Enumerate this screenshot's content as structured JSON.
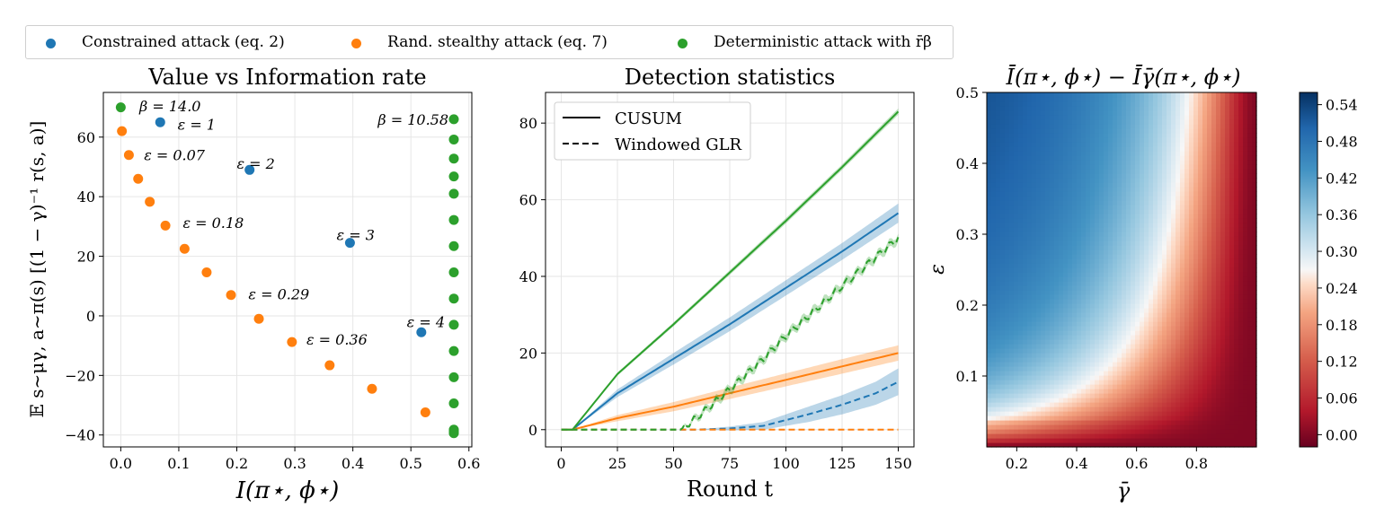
{
  "colors": {
    "blue": "#1f77b4",
    "orange": "#ff7f0e",
    "green": "#2ca02c"
  },
  "legend": [
    {
      "label": "Constrained attack (eq. 2)",
      "color": "#1f77b4"
    },
    {
      "label": "Rand. stealthy attack (eq. 7)",
      "color": "#ff7f0e"
    },
    {
      "label": "Deterministic attack with r̄β",
      "color": "#2ca02c"
    }
  ],
  "chart_data": [
    {
      "type": "scatter",
      "title": "Value vs Information rate",
      "xlabel": "I(π⋆, ϕ⋆)",
      "ylabel": "𝔼 s∼μγ, a∼π(s) [(1 − γ)⁻¹ r(s, a)]",
      "xlim": [
        -0.03,
        0.605
      ],
      "ylim": [
        -44,
        75
      ],
      "xticks": [
        "0.0",
        "0.1",
        "0.2",
        "0.3",
        "0.4",
        "0.5",
        "0.6"
      ],
      "xtick_values": [
        0,
        0.1,
        0.2,
        0.3,
        0.4,
        0.5,
        0.6
      ],
      "yticks": [
        "−40",
        "−20",
        "0",
        "20",
        "40",
        "60"
      ],
      "ytick_values": [
        -40,
        -20,
        0,
        20,
        40,
        60
      ],
      "grid": true,
      "series": [
        {
          "name": "Constrained attack (eq. 2)",
          "color": "#1f77b4",
          "x": [
            0.068,
            0.222,
            0.395,
            0.518
          ],
          "y": [
            65,
            49,
            24.5,
            -5.5
          ]
        },
        {
          "name": "Rand. stealthy attack (eq. 7)",
          "color": "#ff7f0e",
          "x": [
            0.002,
            0.014,
            0.03,
            0.05,
            0.077,
            0.11,
            0.148,
            0.19,
            0.238,
            0.295,
            0.36,
            0.433,
            0.525
          ],
          "y": [
            62,
            54,
            46,
            38.3,
            30.3,
            22.5,
            14.6,
            7,
            -1,
            -8.8,
            -16.6,
            -24.5,
            -32.4
          ]
        },
        {
          "name": "Deterministic attack with r̄β",
          "color": "#2ca02c",
          "x": [
            0.0,
            0.574,
            0.574,
            0.574,
            0.574,
            0.574,
            0.574,
            0.574,
            0.574,
            0.574,
            0.574,
            0.574,
            0.574,
            0.574,
            0.574,
            0.574,
            0.574,
            0.574,
            0.574,
            0.574,
            0.574
          ],
          "y": [
            70,
            66,
            59.2,
            52.8,
            46.8,
            41,
            32.2,
            23.4,
            14.6,
            5.8,
            -3,
            -11.8,
            -20.6,
            -29.4,
            -38.2,
            -38.4,
            -38.6,
            -38.8,
            -39,
            -39.2,
            -39.4
          ]
        }
      ],
      "annotations": [
        {
          "text": "β = 14.0",
          "x": 0.032,
          "y": 70.5
        },
        {
          "text": "ε = 1",
          "x": 0.098,
          "y": 64.3
        },
        {
          "text": "ε = 0.07",
          "x": 0.04,
          "y": 54
        },
        {
          "text": "ε = 2",
          "x": 0.2,
          "y": 51.2
        },
        {
          "text": "ε = 0.18",
          "x": 0.107,
          "y": 31.3
        },
        {
          "text": "ε = 3",
          "x": 0.372,
          "y": 27.3
        },
        {
          "text": "ε = 0.29",
          "x": 0.22,
          "y": 7.3
        },
        {
          "text": "ε = 0.36",
          "x": 0.32,
          "y": -7.8
        },
        {
          "text": "ε = 4",
          "x": 0.493,
          "y": -1.9
        },
        {
          "text": "β = 10.58",
          "x": 0.443,
          "y": 66
        }
      ]
    },
    {
      "type": "line",
      "title": "Detection statistics",
      "xlabel": "Round t",
      "ylabel": "",
      "xlim": [
        -7,
        157
      ],
      "ylim": [
        -4.5,
        88
      ],
      "xticks": [
        "0",
        "25",
        "50",
        "75",
        "100",
        "125",
        "150"
      ],
      "xtick_values": [
        0,
        25,
        50,
        75,
        100,
        125,
        150
      ],
      "yticks": [
        "0",
        "20",
        "40",
        "60",
        "80"
      ],
      "ytick_values": [
        0,
        20,
        40,
        60,
        80
      ],
      "grid": true,
      "legend": [
        {
          "label": "CUSUM",
          "style": "solid"
        },
        {
          "label": "Windowed GLR",
          "style": "dashed"
        }
      ],
      "series": [
        {
          "name": "Constrained CUSUM",
          "color": "#1f77b4",
          "style": "solid",
          "x": [
            0,
            5,
            25,
            50,
            75,
            100,
            125,
            150
          ],
          "y": [
            0,
            0,
            9.5,
            18.5,
            27.5,
            37,
            46.5,
            56.5
          ],
          "band": [
            0,
            0,
            1,
            1.5,
            1.8,
            2,
            2.2,
            2.5
          ]
        },
        {
          "name": "Rand. stealthy CUSUM",
          "color": "#ff7f0e",
          "style": "solid",
          "x": [
            0,
            5,
            25,
            50,
            75,
            100,
            125,
            150
          ],
          "y": [
            0,
            0,
            3,
            6,
            9.5,
            13,
            16.5,
            20
          ],
          "band": [
            0,
            0,
            0.8,
            1.2,
            1.5,
            1.7,
            1.9,
            2
          ]
        },
        {
          "name": "Deterministic CUSUM",
          "color": "#2ca02c",
          "style": "solid",
          "x": [
            0,
            5,
            25,
            50,
            75,
            100,
            125,
            150
          ],
          "y": [
            0,
            0,
            14.5,
            27.5,
            41,
            54.5,
            68.5,
            83
          ],
          "band": [
            0,
            0,
            0.4,
            0.5,
            0.6,
            0.7,
            0.7,
            0.8
          ]
        },
        {
          "name": "Constrained GLR",
          "color": "#1f77b4",
          "style": "dashed",
          "x": [
            0,
            60,
            75,
            90,
            100,
            110,
            125,
            140,
            150
          ],
          "y": [
            0,
            0,
            0.3,
            1,
            2.5,
            4,
            6.5,
            9.5,
            12.5
          ],
          "band": [
            0,
            0,
            0.5,
            1,
            1.5,
            2,
            2.5,
            3,
            3.5
          ]
        },
        {
          "name": "Rand. stealthy GLR",
          "color": "#ff7f0e",
          "style": "dashed",
          "x": [
            0,
            150
          ],
          "y": [
            0,
            0
          ],
          "band": [
            0,
            0
          ]
        },
        {
          "name": "Deterministic GLR",
          "color": "#2ca02c",
          "style": "dashed",
          "wavy": true,
          "x": [
            0,
            53,
            60,
            75,
            90,
            100,
            125,
            150
          ],
          "y": [
            0,
            0,
            3,
            10.5,
            18.5,
            24.5,
            37.5,
            50
          ],
          "band": [
            0,
            0,
            0.8,
            1,
            1,
            1,
            1,
            1
          ]
        }
      ]
    },
    {
      "type": "heatmap",
      "title": "Ī(π⋆, ϕ⋆) − Īγ̄(π⋆, ϕ⋆)",
      "xlabel": "γ̄",
      "ylabel": "ε",
      "xlim": [
        0.1,
        1.0
      ],
      "ylim": [
        0.0,
        0.5
      ],
      "xticks": [
        "0.2",
        "0.4",
        "0.6",
        "0.8"
      ],
      "xtick_values": [
        0.2,
        0.4,
        0.6,
        0.8
      ],
      "yticks": [
        "0.1",
        "0.2",
        "0.3",
        "0.4",
        "0.5"
      ],
      "ytick_values": [
        0.1,
        0.2,
        0.3,
        0.4,
        0.5
      ],
      "colorbar_ticks": [
        "0.00",
        "0.06",
        "0.12",
        "0.18",
        "0.24",
        "0.30",
        "0.36",
        "0.42",
        "0.48",
        "0.54"
      ],
      "colorbar_values": [
        0,
        0.06,
        0.12,
        0.18,
        0.24,
        0.3,
        0.36,
        0.42,
        0.48,
        0.54
      ],
      "colorbar_range": [
        -0.02,
        0.56
      ],
      "colormap": "RdBu"
    }
  ]
}
